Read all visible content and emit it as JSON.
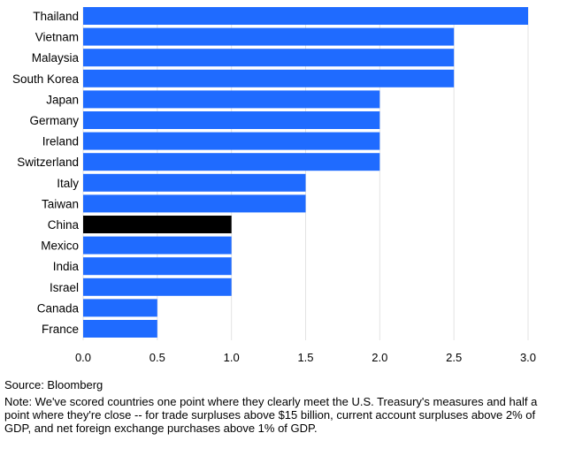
{
  "chart_data": {
    "type": "bar",
    "orientation": "horizontal",
    "categories": [
      "Thailand",
      "Vietnam",
      "Malaysia",
      "South Korea",
      "Japan",
      "Germany",
      "Ireland",
      "Switzerland",
      "Italy",
      "Taiwan",
      "China",
      "Mexico",
      "India",
      "Israel",
      "Canada",
      "France"
    ],
    "values": [
      3.0,
      2.5,
      2.5,
      2.5,
      2.0,
      2.0,
      2.0,
      2.0,
      1.5,
      1.5,
      1.0,
      1.0,
      1.0,
      1.0,
      0.5,
      0.5
    ],
    "highlight": "China",
    "xlim": [
      0,
      3.0
    ],
    "xticks": [
      "0.0",
      "0.5",
      "1.0",
      "1.5",
      "2.0",
      "2.5",
      "3.0"
    ],
    "grid": "vertical",
    "colors": {
      "bar": "#1F6BFF",
      "highlight": "#000000",
      "grid": "#e3e3e3"
    },
    "title": "",
    "xlabel": "",
    "ylabel": ""
  },
  "footer": {
    "source": "Source: Bloomberg",
    "note": "Note: We've scored countries one point where they clearly meet the U.S. Treasury's measures and half a point where they're close -- for trade surpluses above $15 billion, current account surpluses above 2% of GDP, and net foreign exchange purchases above 1% of GDP."
  }
}
